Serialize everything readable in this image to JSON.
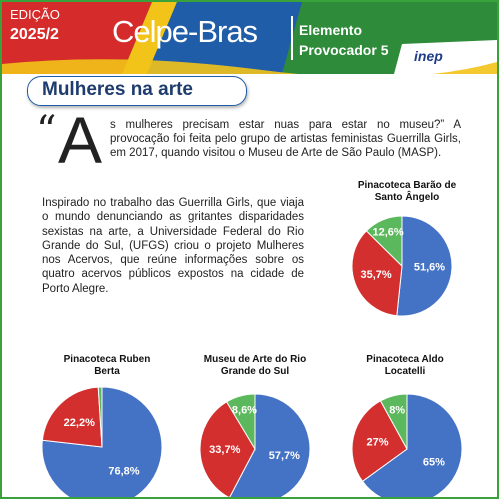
{
  "header": {
    "edition_label": "EDIÇÃO",
    "edition_year": "2025/2",
    "logo_text": "Celpe-Bras",
    "element_line1": "Elemento",
    "element_line2": "Provocador 5",
    "inep_logo": "inep",
    "colors": {
      "green": "#2e8b3a",
      "blue": "#1f5da8",
      "red": "#d62b2b",
      "yellow": "#f2c318"
    }
  },
  "title": "Mulheres na arte",
  "article": {
    "quote_mark": "“",
    "drop_cap": "A",
    "paragraph1": "s mulheres precisam estar nuas para estar no museu?” A provocação foi feita pelo grupo de artistas feministas Guerrilla Girls, em 2017, quando visitou o Museu de Arte de São Paulo (MASP).",
    "paragraph2": "Inspirado no trabalho das Guerrilla Girls, que viaja o mundo denunciando as gritantes disparidades sexistas na arte, a Universidade Federal do Rio Grande do Sul, (UFGS) criou o projeto Mulheres nos Acervos, que reúne informações sobre os quatro acervos públicos expostos na cidade de Porto Alegre."
  },
  "chart_data": [
    {
      "type": "pie",
      "title": "Pinacoteca Barão de Santo Ângelo",
      "slices": [
        {
          "label": "51,6%",
          "value": 51.6,
          "color": "#4472c4"
        },
        {
          "label": "35,7%",
          "value": 35.7,
          "color": "#d32f2f"
        },
        {
          "label": "12,6%",
          "value": 12.6,
          "color": "#5cb85c"
        }
      ]
    },
    {
      "type": "pie",
      "title": "Pinacoteca Ruben Berta",
      "slices": [
        {
          "label": "76,8%",
          "value": 76.8,
          "color": "#4472c4"
        },
        {
          "label": "22,2%",
          "value": 22.2,
          "color": "#d32f2f"
        },
        {
          "label": "",
          "value": 1.0,
          "color": "#5cb85c"
        }
      ]
    },
    {
      "type": "pie",
      "title": "Museu de Arte do Rio Grande do Sul",
      "slices": [
        {
          "label": "57,7%",
          "value": 57.7,
          "color": "#4472c4"
        },
        {
          "label": "33,7%",
          "value": 33.7,
          "color": "#d32f2f"
        },
        {
          "label": "8,6%",
          "value": 8.6,
          "color": "#5cb85c"
        }
      ]
    },
    {
      "type": "pie",
      "title": "Pinacoteca Aldo Locatelli",
      "slices": [
        {
          "label": "65%",
          "value": 65,
          "color": "#4472c4"
        },
        {
          "label": "27%",
          "value": 27,
          "color": "#d32f2f"
        },
        {
          "label": "8%",
          "value": 8,
          "color": "#5cb85c"
        }
      ]
    }
  ]
}
